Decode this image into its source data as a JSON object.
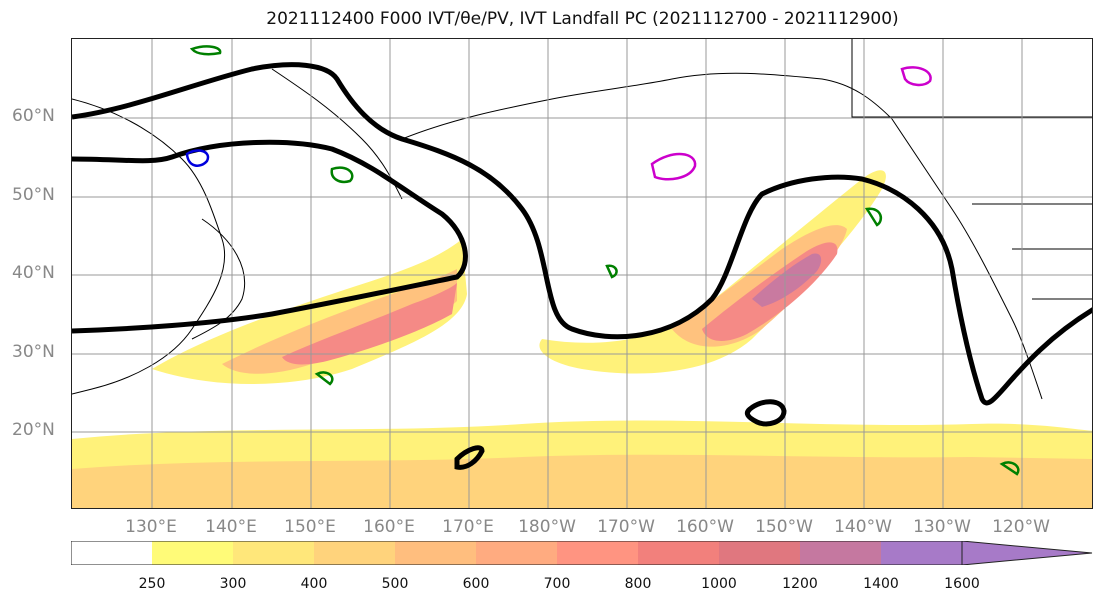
{
  "title": "2021112400 F000 IVT/θe/PV, IVT Landfall PC (2021112700 - 2021112900)",
  "lat_labels": [
    "60°N",
    "50°N",
    "40°N",
    "30°N",
    "20°N"
  ],
  "lon_labels": [
    "130°E",
    "140°E",
    "150°E",
    "160°E",
    "170°E",
    "180°W",
    "170°W",
    "160°W",
    "150°W",
    "140°W",
    "130°W",
    "120°W"
  ],
  "colorbar": {
    "levels": [
      "250",
      "300",
      "400",
      "500",
      "600",
      "700",
      "800",
      "1000",
      "1200",
      "1400",
      "1600"
    ],
    "colors": [
      "#ffffff",
      "#fffb78",
      "#ffe77a",
      "#ffd37c",
      "#ffbe7e",
      "#ffab80",
      "#ff9481",
      "#f2807c",
      "#e0777f",
      "#c578a0",
      "#a77ac8"
    ]
  },
  "map_colors": {
    "ivt_low": "#fff27a",
    "ivt_mid": "#ffc27e",
    "ivt_high": "#f58a86",
    "ivt_core": "#c97aa0",
    "theta_e": "#000000",
    "pv_green": "#008000",
    "pv_blue": "#0000dd",
    "pv_magenta": "#cc00cc"
  }
}
